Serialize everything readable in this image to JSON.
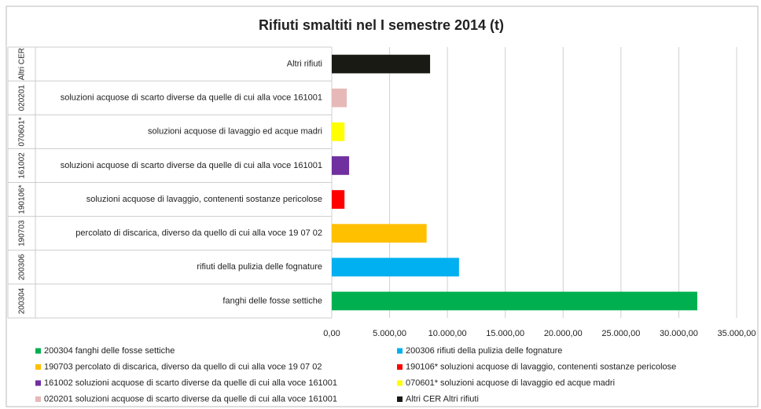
{
  "chart_data": {
    "type": "bar",
    "orientation": "horizontal",
    "title": "Rifiuti smaltiti nel I semestre 2014 (t)",
    "category_groups": [
      "200304",
      "200306",
      "190703",
      "190106*",
      "161002",
      "070601*",
      "020201",
      "Altri CER"
    ],
    "categories": [
      "fanghi delle fosse settiche",
      "rifiuti della pulizia delle fognature",
      "percolato di discarica, diverso da quello di cui alla voce 19 07 02",
      "soluzioni acquose di lavaggio, contenenti sostanze pericolose",
      "soluzioni acquose di scarto diverse da quelle di cui alla voce 161001",
      "soluzioni acquose di lavaggio ed acque madri",
      "soluzioni acquose di scarto diverse da quelle di cui alla voce 161001",
      "Altri rifiuti"
    ],
    "series": [
      {
        "name": "200304 fanghi delle fosse settiche",
        "color": "#00b050",
        "values": [
          31600,
          null,
          null,
          null,
          null,
          null,
          null,
          null
        ]
      },
      {
        "name": "200306 rifiuti della pulizia delle fognature",
        "color": "#00b0f0",
        "values": [
          null,
          11000,
          null,
          null,
          null,
          null,
          null,
          null
        ]
      },
      {
        "name": "190703 percolato di discarica, diverso da quello di cui alla voce 19 07 02",
        "color": "#ffc000",
        "values": [
          null,
          null,
          8200,
          null,
          null,
          null,
          null,
          null
        ]
      },
      {
        "name": "190106* soluzioni acquose di lavaggio, contenenti sostanze pericolose",
        "color": "#ff0000",
        "values": [
          null,
          null,
          null,
          1100,
          null,
          null,
          null,
          null
        ]
      },
      {
        "name": "161002 soluzioni acquose di scarto diverse da quelle di cui alla voce 161001",
        "color": "#7030a0",
        "values": [
          null,
          null,
          null,
          null,
          1500,
          null,
          null,
          null
        ]
      },
      {
        "name": "070601* soluzioni acquose di lavaggio ed acque madri",
        "color": "#ffff00",
        "values": [
          null,
          null,
          null,
          null,
          null,
          1100,
          null,
          null
        ]
      },
      {
        "name": "020201 soluzioni acquose di scarto diverse da quelle di cui alla voce 161001",
        "color": "#e6b9b8",
        "values": [
          null,
          null,
          null,
          null,
          null,
          null,
          1300,
          null
        ]
      },
      {
        "name": "Altri CER Altri rifiuti",
        "color": "#1a1a14",
        "values": [
          null,
          null,
          null,
          null,
          null,
          null,
          null,
          8500
        ]
      }
    ],
    "xlim": [
      0,
      35000
    ],
    "xticks": [
      {
        "value": 0,
        "label": "0,00"
      },
      {
        "value": 5000,
        "label": "5.000,00"
      },
      {
        "value": 10000,
        "label": "10.000,00"
      },
      {
        "value": 15000,
        "label": "15.000,00"
      },
      {
        "value": 20000,
        "label": "20.000,00"
      },
      {
        "value": 25000,
        "label": "25.000,00"
      },
      {
        "value": 30000,
        "label": "30.000,00"
      },
      {
        "value": 35000,
        "label": "35.000,00"
      }
    ],
    "grid": true
  }
}
